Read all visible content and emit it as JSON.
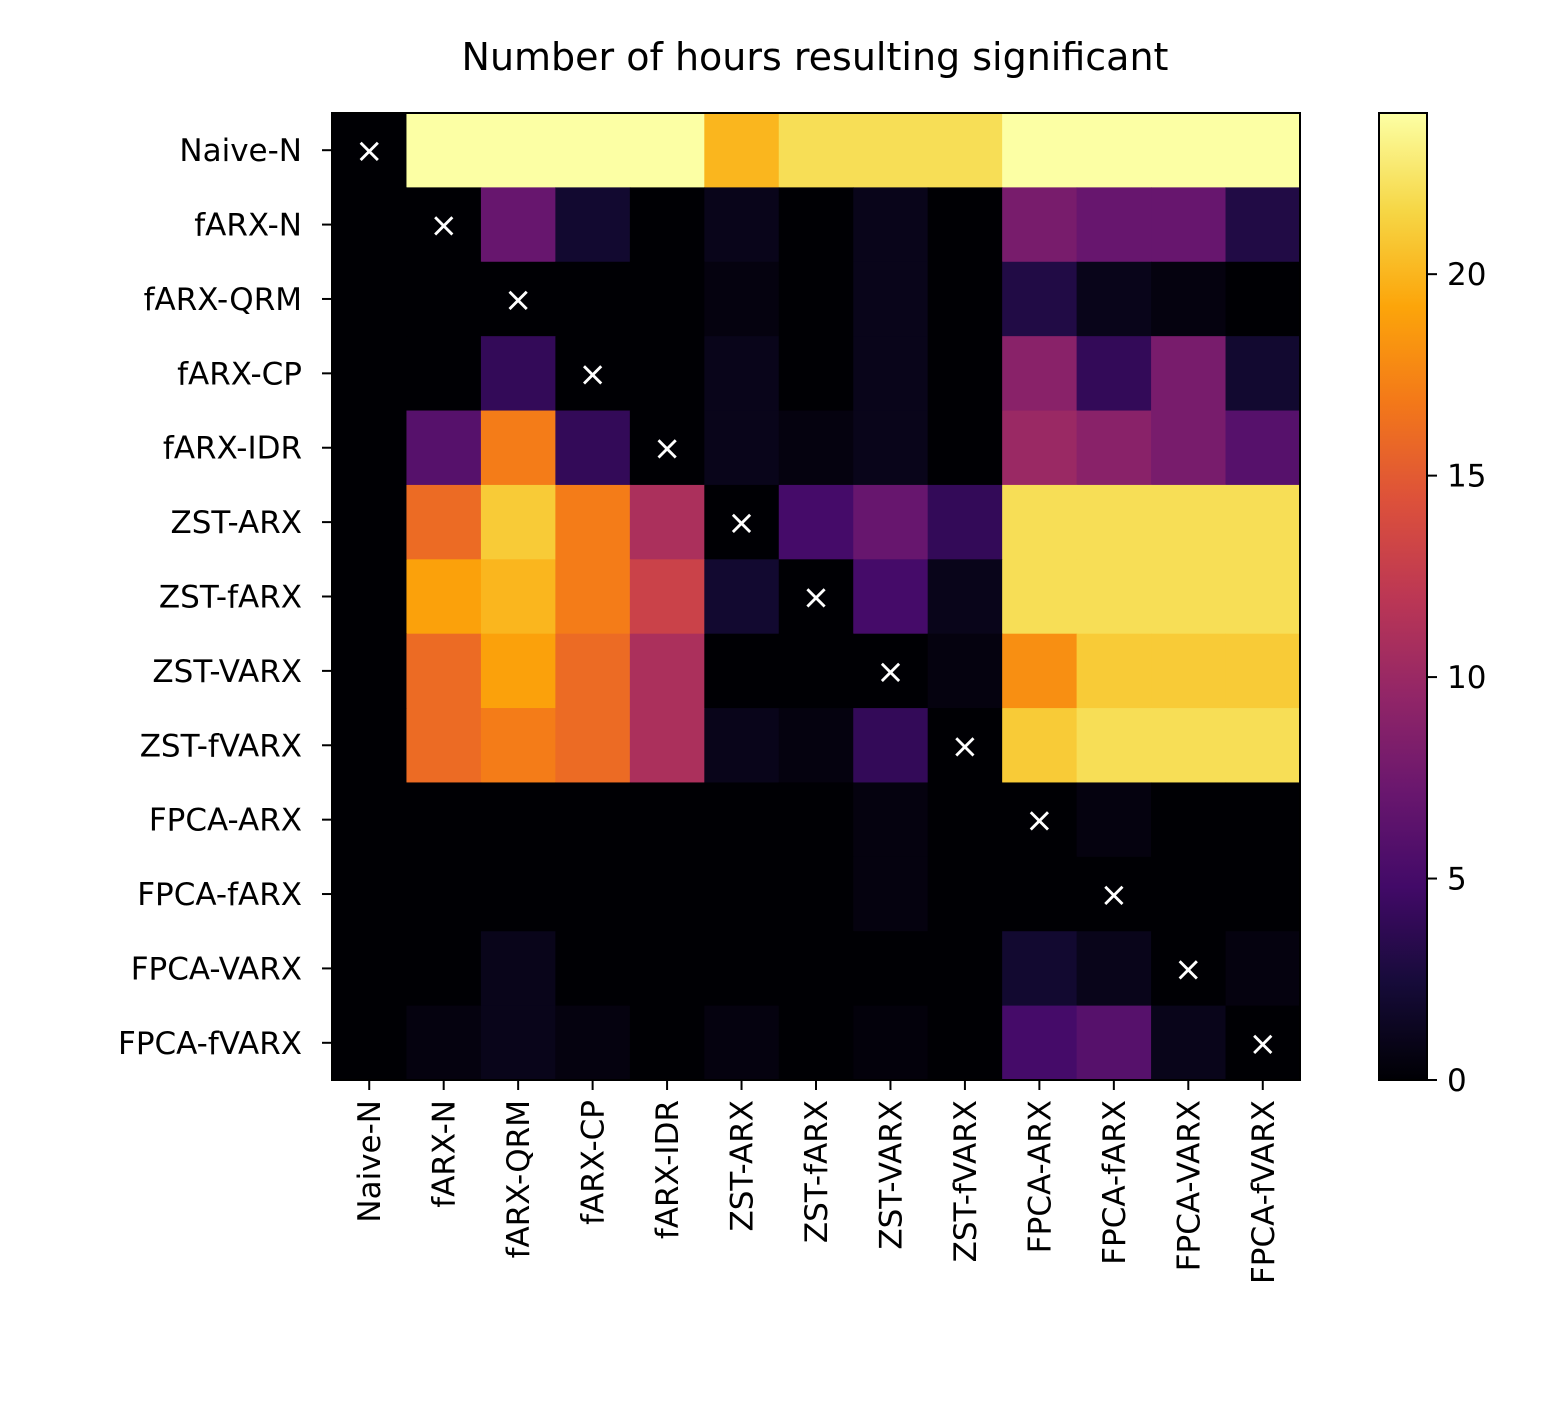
{
  "chart_data": {
    "type": "heatmap",
    "title": "Number of hours resulting significant",
    "xlabel": "",
    "ylabel": "",
    "row_labels": [
      "Naive-N",
      "fARX-N",
      "fARX-QRM",
      "fARX-CP",
      "fARX-IDR",
      "ZST-ARX",
      "ZST-fARX",
      "ZST-VARX",
      "ZST-fVARX",
      "FPCA-ARX",
      "FPCA-fARX",
      "FPCA-VARX",
      "FPCA-fVARX"
    ],
    "col_labels": [
      "Naive-N",
      "fARX-N",
      "fARX-QRM",
      "fARX-CP",
      "fARX-IDR",
      "ZST-ARX",
      "ZST-fARX",
      "ZST-VARX",
      "ZST-fVARX",
      "FPCA-ARX",
      "FPCA-fARX",
      "FPCA-VARX",
      "FPCA-fVARX"
    ],
    "values": [
      [
        0,
        24,
        24,
        24,
        24,
        20,
        22,
        22,
        22,
        24,
        24,
        24,
        24
      ],
      [
        0,
        0,
        7,
        2,
        0,
        1,
        0,
        1,
        0,
        8,
        7,
        7,
        3
      ],
      [
        0,
        0,
        0,
        0,
        0,
        0.5,
        0,
        1,
        0,
        3,
        1,
        0.5,
        0
      ],
      [
        0,
        0,
        4,
        0,
        0,
        1,
        0,
        1,
        0,
        9,
        4,
        8,
        2
      ],
      [
        0,
        6,
        17,
        4,
        0,
        1,
        0.5,
        1,
        0,
        10,
        9,
        8,
        6
      ],
      [
        0,
        16,
        21,
        17,
        11,
        0,
        5,
        7,
        4,
        22,
        22,
        22,
        22
      ],
      [
        0,
        19,
        20,
        17,
        13,
        2,
        0,
        5,
        1,
        22,
        22,
        22,
        22
      ],
      [
        0,
        16,
        19,
        16,
        11,
        0,
        0,
        0,
        0.5,
        18,
        21,
        21,
        21
      ],
      [
        0,
        16,
        17,
        16,
        11,
        1,
        0.5,
        4,
        0,
        21,
        22,
        22,
        22
      ],
      [
        0,
        0,
        0,
        0,
        0,
        0,
        0,
        0.5,
        0,
        0,
        0.5,
        0,
        0
      ],
      [
        0,
        0,
        0,
        0,
        0,
        0,
        0,
        0.5,
        0,
        0,
        0,
        0,
        0
      ],
      [
        0,
        0,
        1,
        0,
        0,
        0,
        0,
        0,
        0,
        2,
        1,
        0,
        0.5
      ],
      [
        0,
        0.5,
        1,
        0.5,
        0,
        0.5,
        0,
        0.3,
        0,
        5,
        6,
        1,
        0
      ]
    ],
    "diagonal_marker": "×",
    "colormap": "inferno",
    "colorbar": {
      "range": [
        0,
        24
      ],
      "ticks": [
        0,
        5,
        10,
        15,
        20
      ],
      "tick_labels": [
        "0",
        "5",
        "10",
        "15",
        "20"
      ]
    }
  }
}
